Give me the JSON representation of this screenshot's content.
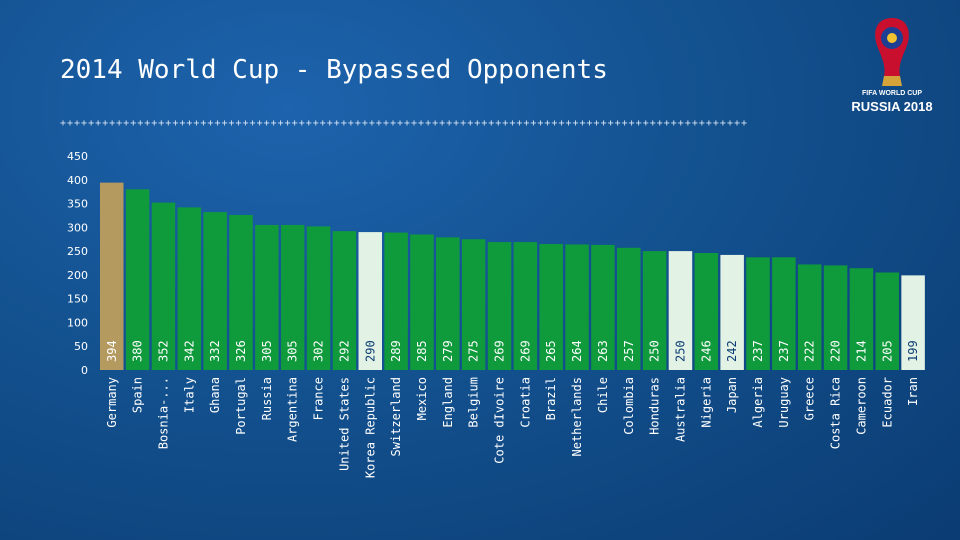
{
  "slide": {
    "title": "2014 World Cup - Bypassed Opponents",
    "divider": "++++++++++++++++++++++++++++++++++++++++++++++++++++++++++++++++++++++++++++++++++++++++++++++++++",
    "logo_line1": "FIFA WORLD CUP",
    "logo_line2": "RUSSIA 2018"
  },
  "colors": {
    "background": "#13518f",
    "bar_default": "#0f9a3c",
    "bar_top": "#b59a60",
    "bar_highlight": "#e2f2e4"
  },
  "chart_data": {
    "type": "bar",
    "title": "2014 World Cup - Bypassed Opponents",
    "xlabel": "",
    "ylabel": "",
    "ylim": [
      0,
      450
    ],
    "yticks": [
      0,
      50,
      100,
      150,
      200,
      250,
      300,
      350,
      400,
      450
    ],
    "grid": false,
    "categories": [
      "Germany",
      "Spain",
      "Bosnia-...",
      "Italy",
      "Ghana",
      "Portugal",
      "Russia",
      "Argentina",
      "France",
      "United States",
      "Korea Republic",
      "Switzerland",
      "Mexico",
      "England",
      "Belgium",
      "Cote dIvoire",
      "Croatia",
      "Brazil",
      "Netherlands",
      "Chile",
      "Colombia",
      "Honduras",
      "Australia",
      "Nigeria",
      "Japan",
      "Algeria",
      "Uruguay",
      "Greece",
      "Costa Rica",
      "Cameroon",
      "Ecuador",
      "Iran"
    ],
    "values": [
      394,
      380,
      352,
      342,
      332,
      326,
      305,
      305,
      302,
      292,
      290,
      289,
      285,
      279,
      275,
      269,
      269,
      265,
      264,
      263,
      257,
      250,
      250,
      246,
      242,
      237,
      237,
      222,
      220,
      214,
      205,
      199
    ],
    "highlight": [
      "Korea Republic",
      "Australia",
      "Japan",
      "Iran"
    ],
    "top": [
      "Germany"
    ]
  }
}
